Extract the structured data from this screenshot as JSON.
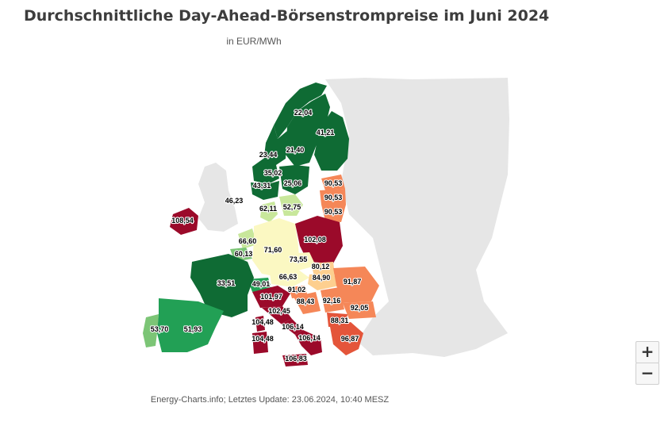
{
  "title": "Durchschnittliche Day-Ahead-Börsenstrompreise im Juni 2024",
  "subtitle": "in EUR/MWh",
  "source": "Energy-Charts.info; Letztes Update: 23.06.2024, 10:40 MESZ",
  "zoom": {
    "in_label": "+",
    "out_label": "−"
  },
  "colors": {
    "background_land": "#e6e6e6",
    "dark_green": "#0f6b34",
    "green": "#22a055",
    "light_green": "#7cc576",
    "pale_green": "#c8e79b",
    "pale_yellow": "#fbf8c2",
    "light_orange": "#fdcf8f",
    "orange": "#f58758",
    "red_orange": "#e4553a",
    "dark_red": "#9b0a2a"
  },
  "regions": [
    {
      "name": "Nordnorwegen",
      "price": "22,04"
    },
    {
      "name": "Finnland",
      "price": "41,21"
    },
    {
      "name": "Mittelnorwegen",
      "price": "23,44"
    },
    {
      "name": "Nordschweden",
      "price": "21,40"
    },
    {
      "name": "Westnorwegen",
      "price": "35,02"
    },
    {
      "name": "Mittelschweden",
      "price": "25,06"
    },
    {
      "name": "Südnorwegen",
      "price": "43,31"
    },
    {
      "name": "Estland",
      "price": "90,53"
    },
    {
      "name": "Lettland",
      "price": "90,53"
    },
    {
      "name": "Litauen",
      "price": "90,53"
    },
    {
      "name": "Südwestnorwegen",
      "price": "46,23"
    },
    {
      "name": "Westdänemark",
      "price": "62,11"
    },
    {
      "name": "Südschweden",
      "price": "52,75"
    },
    {
      "name": "Irland",
      "price": "108,54"
    },
    {
      "name": "Niederlande",
      "price": "66,60"
    },
    {
      "name": "Deutschland",
      "price": "71,60"
    },
    {
      "name": "Polen",
      "price": "102,08"
    },
    {
      "name": "Belgien",
      "price": "60,13"
    },
    {
      "name": "Tschechien",
      "price": "73,55"
    },
    {
      "name": "Slowakei",
      "price": "80,12"
    },
    {
      "name": "Frankreich",
      "price": "33,51"
    },
    {
      "name": "Österreich",
      "price": "66,63"
    },
    {
      "name": "Ungarn",
      "price": "84,90"
    },
    {
      "name": "Rumänien",
      "price": "91,87"
    },
    {
      "name": "Schweiz",
      "price": "49,01"
    },
    {
      "name": "Slowenien",
      "price": "91,02"
    },
    {
      "name": "Norditalien",
      "price": "101,97"
    },
    {
      "name": "Kroatien",
      "price": "88,43"
    },
    {
      "name": "Serbien",
      "price": "92,16"
    },
    {
      "name": "Mittelnorditalien",
      "price": "102,45"
    },
    {
      "name": "Bulgarien",
      "price": "92,05"
    },
    {
      "name": "Portugal",
      "price": "53,70"
    },
    {
      "name": "Spanien",
      "price": "51,93"
    },
    {
      "name": "Korsika-Sardinien Nord",
      "price": "104,48"
    },
    {
      "name": "Mittelsüditalien",
      "price": "106,14"
    },
    {
      "name": "Nordmazedonien",
      "price": "88,31"
    },
    {
      "name": "Sardinien",
      "price": "104,48"
    },
    {
      "name": "Süditalien",
      "price": "106,14"
    },
    {
      "name": "Griechenland",
      "price": "96,87"
    },
    {
      "name": "Sizilien",
      "price": "106,83"
    }
  ]
}
